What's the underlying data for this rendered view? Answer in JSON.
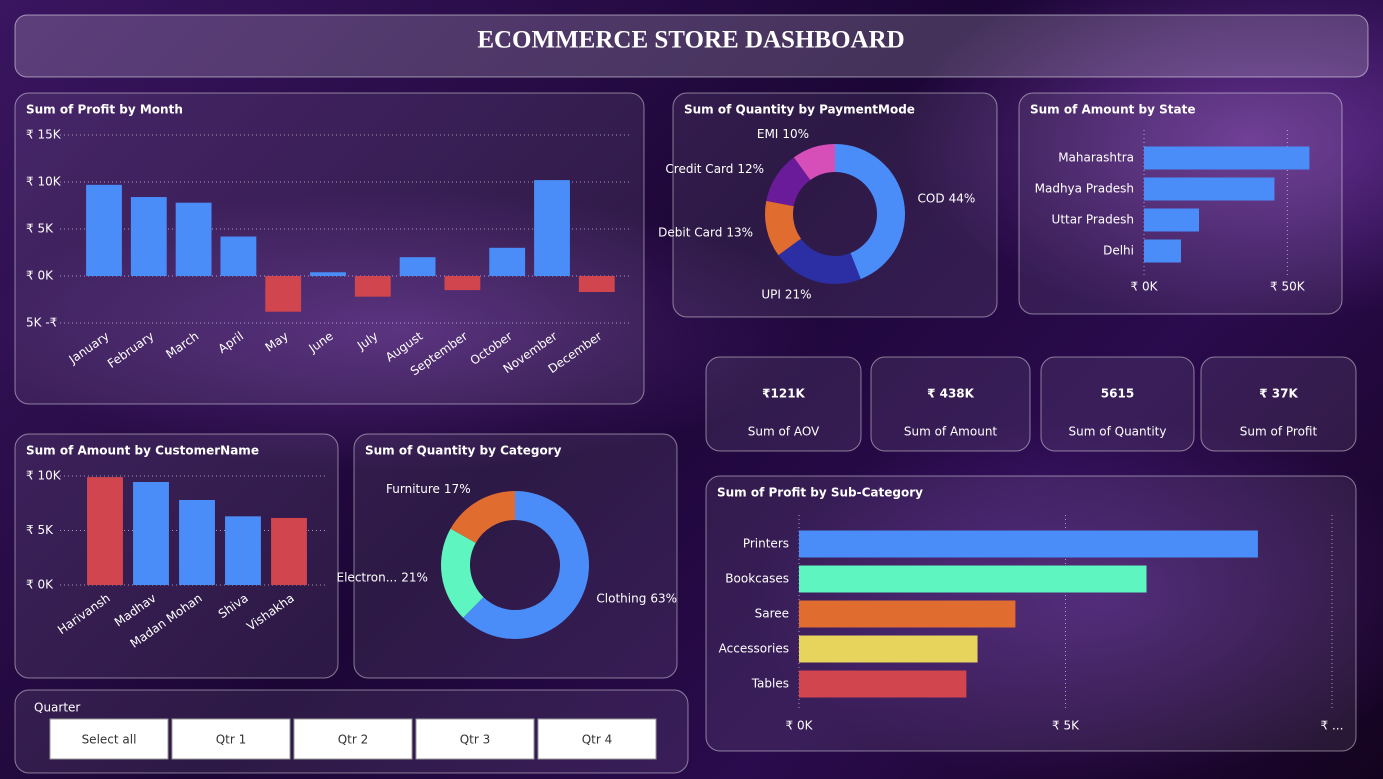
{
  "header": {
    "title": "ECOMMERCE STORE DASHBOARD"
  },
  "chart_data": [
    {
      "type": "bar",
      "title": "Sum of Profit by Month",
      "categories": [
        "January",
        "February",
        "March",
        "April",
        "May",
        "June",
        "July",
        "August",
        "September",
        "October",
        "November",
        "December"
      ],
      "values": [
        9700,
        8400,
        7800,
        4200,
        -3800,
        400,
        -2200,
        2000,
        -1500,
        3000,
        10200,
        -1700
      ],
      "colors": [
        "#4a8df8",
        "#4a8df8",
        "#4a8df8",
        "#4a8df8",
        "#d1454f",
        "#4a8df8",
        "#d1454f",
        "#4a8df8",
        "#d1454f",
        "#4a8df8",
        "#4a8df8",
        "#d1454f"
      ],
      "ylim": [
        -5000,
        15000
      ],
      "yticks": [
        {
          "value": 15000,
          "label": "₹ 15K"
        },
        {
          "value": 10000,
          "label": "₹ 10K"
        },
        {
          "value": 5000,
          "label": "₹ 5K"
        },
        {
          "value": 0,
          "label": "₹ 0K"
        },
        {
          "value": -5000,
          "label": "5K -₹"
        }
      ],
      "grid": true
    },
    {
      "type": "donut",
      "title": "Sum of Quantity by PaymentMode",
      "categories": [
        "COD",
        "UPI",
        "Debit Card",
        "Credit Card",
        "EMI"
      ],
      "values": [
        44,
        21,
        13,
        12,
        10
      ],
      "value_labels": [
        "44%",
        "21%",
        "13%",
        "12%",
        "10%"
      ],
      "colors": [
        "#4a8df8",
        "#2b2fa3",
        "#e06c30",
        "#6a1b9a",
        "#d64fb8"
      ]
    },
    {
      "type": "hbar",
      "title": "Sum of Amount by State",
      "categories": [
        "Maharashtra",
        "Madhya Pradesh",
        "Uttar Pradesh",
        "Delhi"
      ],
      "values": [
        57700,
        45500,
        19200,
        12900
      ],
      "colors": [
        "#4a8df8",
        "#4a8df8",
        "#4a8df8",
        "#4a8df8"
      ],
      "xlim": [
        0,
        60000
      ],
      "xticks": [
        {
          "value": 0,
          "label": "₹ 0K"
        },
        {
          "value": 50000,
          "label": "₹ 50K"
        }
      ],
      "grid": true
    },
    {
      "type": "bar",
      "title": "Sum of Amount by CustomerName",
      "categories": [
        "Harivansh",
        "Madhav",
        "Madan Mohan",
        "Shiva",
        "Vishakha"
      ],
      "values": [
        9900,
        9450,
        7800,
        6300,
        6150
      ],
      "colors": [
        "#d1454f",
        "#4a8df8",
        "#4a8df8",
        "#4a8df8",
        "#d1454f"
      ],
      "ylim": [
        0,
        10000
      ],
      "yticks": [
        {
          "value": 10000,
          "label": "₹ 10K"
        },
        {
          "value": 5000,
          "label": "₹ 5K"
        },
        {
          "value": 0,
          "label": "₹ 0K"
        }
      ],
      "grid": true
    },
    {
      "type": "donut",
      "title": "Sum of Quantity by Category",
      "categories": [
        "Clothing",
        "Electron...",
        "Furniture"
      ],
      "values": [
        63,
        21,
        17
      ],
      "value_labels": [
        "63%",
        "21%",
        "17%"
      ],
      "colors": [
        "#4a8df8",
        "#5ff5c0",
        "#e06c30"
      ]
    },
    {
      "type": "hbar",
      "title": "Sum of Profit by Sub-Category",
      "categories": [
        "Printers",
        "Bookcases",
        "Saree",
        "Accessories",
        "Tables"
      ],
      "values": [
        8610,
        6520,
        4060,
        3350,
        3140
      ],
      "colors": [
        "#4a8df8",
        "#5ff5c0",
        "#e06c30",
        "#e6d45c",
        "#d1454f"
      ],
      "xlim": [
        0,
        10000
      ],
      "xticks": [
        {
          "value": 0,
          "label": "₹ 0K"
        },
        {
          "value": 5000,
          "label": "₹ 5K"
        },
        {
          "value": 10000,
          "label": "₹ ..."
        }
      ],
      "grid": true
    }
  ],
  "kpis": [
    {
      "value": "₹121K",
      "label": "Sum of AOV"
    },
    {
      "value": "₹ 438K",
      "label": "Sum of Amount"
    },
    {
      "value": "5615",
      "label": "Sum of Quantity"
    },
    {
      "value": "₹ 37K",
      "label": "Sum of Profit"
    }
  ],
  "slicer": {
    "title": "Quarter",
    "options": [
      "Select all",
      "Qtr 1",
      "Qtr 2",
      "Qtr 3",
      "Qtr 4"
    ]
  }
}
